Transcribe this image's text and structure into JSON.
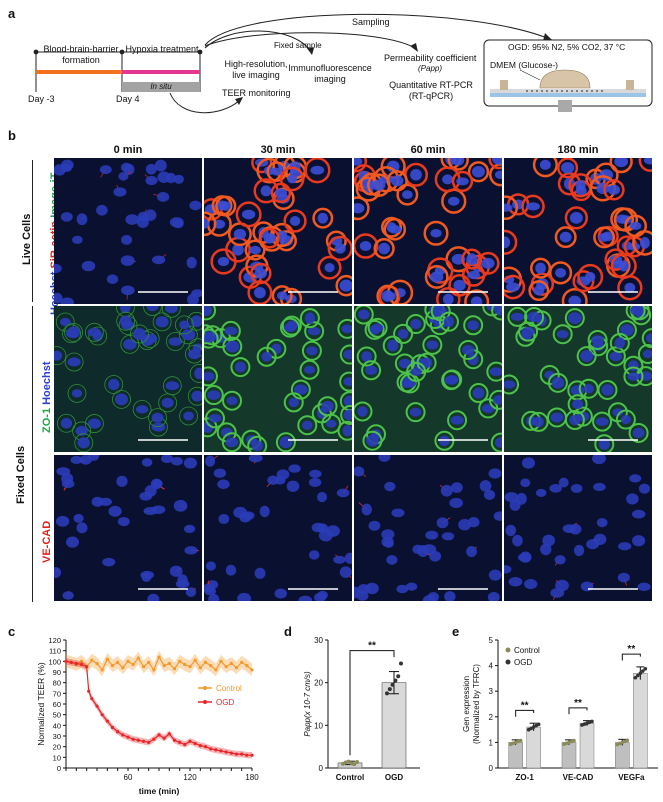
{
  "panels": {
    "a": "a",
    "b": "b",
    "c": "c",
    "d": "d",
    "e": "e"
  },
  "timeline": {
    "day_start": "Day -3",
    "day_mid": "Day 4",
    "bbb_label": "Blood-brain-barrier formation",
    "hypoxia_label": "Hypoxia treatment",
    "in_situ": "In situ",
    "sampling": "Sampling",
    "fixed_sample": "Fixed sample",
    "highres": "High-resolution, live imaging",
    "teer": "TEER monitoring",
    "if_imaging": "Immunofluorescence imaging",
    "perm": "Permeability coefficient",
    "papp": "(Papp)",
    "qpcr": "Quantitative RT-PCR (RT-qPCR)",
    "ogd_cond": "OGD: 95% N2, 5% CO2, 37 °C",
    "dmem": "DMEM (Glucose-)"
  },
  "micro": {
    "times": [
      "0 min",
      "30 min",
      "60 min",
      "180 min"
    ],
    "live_group": "Live Cells",
    "fixed_group": "Fixed  Cells",
    "row1_stains": [
      {
        "text": "Hoechst",
        "color": "#2b3fd1"
      },
      {
        "text": " SiR-actin",
        "color": "#e2231a"
      },
      {
        "text": " Image-iT",
        "color": "#1fa84a"
      }
    ],
    "row2_stains": [
      {
        "text": "ZO-1",
        "color": "#1fa84a"
      },
      {
        "text": " Hoechst",
        "color": "#2b3fd1"
      }
    ],
    "row3_stains": [
      {
        "text": "VE-CAD",
        "color": "#e2231a"
      }
    ]
  },
  "chart_data": [
    {
      "type": "line",
      "panel": "c",
      "ylabel": "Normalized TEER (%)",
      "xlabel": "time (min)",
      "xlim": [
        0,
        180
      ],
      "ylim": [
        0,
        120
      ],
      "xticks": [
        60,
        120,
        180
      ],
      "yticks": [
        0,
        10,
        20,
        30,
        40,
        50,
        60,
        70,
        80,
        90,
        100,
        110,
        120
      ],
      "series": [
        {
          "name": "Control",
          "color": "#f39a2e",
          "x": [
            0,
            5,
            10,
            15,
            20,
            25,
            30,
            35,
            40,
            45,
            50,
            55,
            60,
            65,
            70,
            75,
            80,
            85,
            90,
            95,
            100,
            105,
            110,
            115,
            120,
            125,
            130,
            135,
            140,
            145,
            150,
            155,
            160,
            165,
            170,
            175,
            180
          ],
          "y": [
            100,
            99,
            97,
            100,
            95,
            101,
            98,
            92,
            102,
            96,
            99,
            94,
            100,
            97,
            103,
            95,
            99,
            92,
            104,
            96,
            98,
            93,
            100,
            97,
            95,
            101,
            94,
            99,
            96,
            92,
            100,
            95,
            98,
            94,
            99,
            96,
            92
          ]
        },
        {
          "name": "OGD",
          "color": "#e8262a",
          "x": [
            0,
            5,
            10,
            15,
            20,
            22,
            25,
            30,
            35,
            40,
            45,
            50,
            55,
            60,
            65,
            70,
            75,
            80,
            85,
            90,
            95,
            100,
            105,
            110,
            115,
            120,
            125,
            130,
            135,
            140,
            145,
            150,
            155,
            160,
            165,
            170,
            175,
            180
          ],
          "y": [
            100,
            99,
            98,
            97,
            95,
            72,
            65,
            58,
            50,
            44,
            38,
            34,
            31,
            29,
            27,
            26,
            25,
            24,
            27,
            31,
            28,
            32,
            26,
            24,
            22,
            25,
            23,
            21,
            20,
            18,
            17,
            16,
            15,
            14,
            13,
            13,
            12,
            12
          ]
        }
      ]
    },
    {
      "type": "bar",
      "panel": "d",
      "categories": [
        "Control",
        "OGD"
      ],
      "values": [
        1.2,
        20
      ],
      "errors": [
        0.4,
        2.6
      ],
      "points": [
        [
          1.0,
          1.3,
          1.5,
          1.1,
          0.9,
          1.4
        ],
        [
          17.5,
          18.5,
          19.5,
          20.5,
          21.5,
          24.5
        ]
      ],
      "ylim": [
        0,
        30
      ],
      "yticks": [
        0,
        10,
        20,
        30
      ],
      "ylabel": "Papp(x 10-7 cm/s)",
      "significance": "**"
    },
    {
      "type": "bar",
      "panel": "e",
      "categories": [
        "ZO-1",
        "VE-CAD",
        "VEGFa"
      ],
      "series": [
        {
          "name": "Control",
          "color": "#bfbfbf",
          "values": [
            1.0,
            1.0,
            1.0
          ],
          "errors": [
            0.1,
            0.1,
            0.12
          ]
        },
        {
          "name": "OGD",
          "color": "#d9d9d9",
          "values": [
            1.6,
            1.75,
            3.7
          ],
          "errors": [
            0.15,
            0.1,
            0.25
          ]
        }
      ],
      "ylim": [
        0,
        5
      ],
      "yticks": [
        0,
        1,
        2,
        3,
        4,
        5
      ],
      "ylabel": "Gen expression (Normalized by TFRC)",
      "significance": [
        "**",
        "**",
        "**"
      ]
    }
  ]
}
